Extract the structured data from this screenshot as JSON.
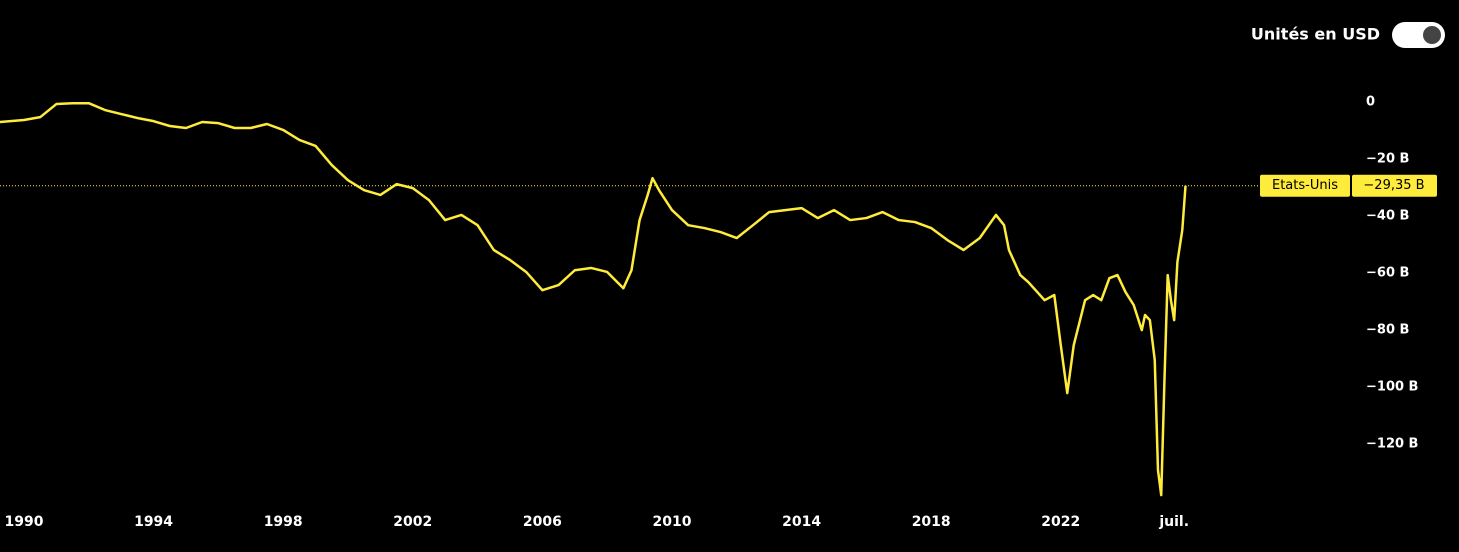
{
  "chart_data": {
    "type": "line",
    "toggle_label": "Unités en USD",
    "x": [
      1989.25,
      1990,
      1990.5,
      1991,
      1991.5,
      1992,
      1992.5,
      1993,
      1993.5,
      1994,
      1994.5,
      1995,
      1995.5,
      1996,
      1996.5,
      1997,
      1997.5,
      1998,
      1998.5,
      1999,
      1999.5,
      2000,
      2000.5,
      2001,
      2001.5,
      2002,
      2002.5,
      2003,
      2003.5,
      2004,
      2004.5,
      2005,
      2005.5,
      2006,
      2006.5,
      2007,
      2007.5,
      2008,
      2008.5,
      2008.75,
      2009,
      2009.25,
      2009.4,
      2009.6,
      2010,
      2010.5,
      2011,
      2011.5,
      2012,
      2012.5,
      2013,
      2013.5,
      2014,
      2014.5,
      2015,
      2015.5,
      2016,
      2016.5,
      2017,
      2017.5,
      2018,
      2018.5,
      2019,
      2019.5,
      2020,
      2020.25,
      2020.4,
      2020.75,
      2021,
      2021.5,
      2021.8,
      2022,
      2022.2,
      2022.4,
      2022.75,
      2023,
      2023.25,
      2023.5,
      2023.75,
      2024,
      2024.25,
      2024.5,
      2024.6,
      2024.75,
      2024.9,
      2025.0,
      2025.1,
      2025.2,
      2025.3,
      2025.4,
      2025.5,
      2025.6,
      2025.75,
      2025.85
    ],
    "series": [
      {
        "name": "Etats-Unis",
        "color": "#ffeb3b",
        "values": [
          -7,
          -6.3,
          -5.3,
          -0.7,
          -0.4,
          -0.4,
          -2.8,
          -4.2,
          -5.6,
          -6.7,
          -8.4,
          -9.1,
          -7,
          -7.4,
          -9.1,
          -9.1,
          -7.7,
          -9.8,
          -13.3,
          -15.4,
          -22.1,
          -27.4,
          -30.9,
          -32.6,
          -28.8,
          -30.2,
          -34.4,
          -41.4,
          -39.6,
          -43.2,
          -51.9,
          -55.4,
          -59.6,
          -66,
          -64.2,
          -59,
          -58.2,
          -59.6,
          -65.3,
          -59,
          -41.4,
          -32.6,
          -26.7,
          -30.9,
          -37.9,
          -43.2,
          -44.2,
          -45.6,
          -47.7,
          -43.2,
          -38.6,
          -37.9,
          -37.2,
          -40.7,
          -37.9,
          -41.4,
          -40.7,
          -38.6,
          -41.4,
          -42.1,
          -44.2,
          -48.4,
          -51.9,
          -47.7,
          -39.6,
          -43.2,
          -51.9,
          -60.7,
          -63.2,
          -69.5,
          -67.7,
          -85.3,
          -102.1,
          -85.3,
          -69.5,
          -67.7,
          -69.5,
          -61.8,
          -60.7,
          -66.7,
          -71.2,
          -80,
          -74.7,
          -76.5,
          -90.5,
          -129.1,
          -137.9,
          -97.5,
          -60.7,
          -69.5,
          -76.5,
          -56.1,
          -44.9,
          -29.35
        ],
        "last_value_label": "−29,35 B"
      }
    ],
    "xlim": [
      1989.26,
      2027.84
    ],
    "xticks": [
      1990,
      1994,
      1998,
      2002,
      2006,
      2010,
      2014,
      2018,
      2022,
      {
        "value": 2025.5,
        "label": "juil."
      }
    ],
    "ylim": [
      -139.6,
      35.8
    ],
    "yticks": [
      0,
      {
        "value": -20,
        "label": "−20 B"
      },
      {
        "value": -40,
        "label": "−40 B"
      },
      {
        "value": -60,
        "label": "−60 B"
      },
      {
        "value": -80,
        "label": "−80 B"
      },
      {
        "value": -100,
        "label": "−100 B"
      },
      {
        "value": -120,
        "label": "−120 B"
      }
    ]
  }
}
